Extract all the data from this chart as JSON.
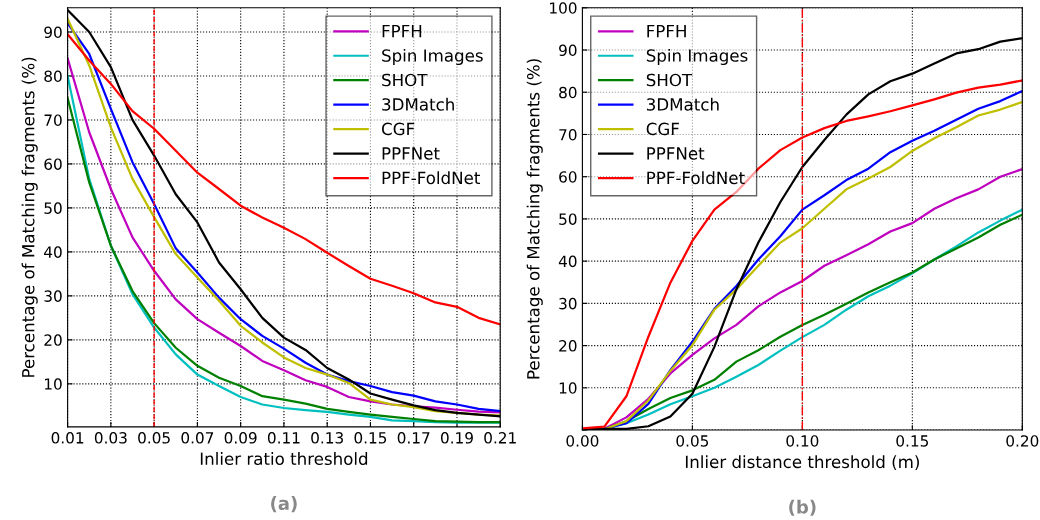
{
  "chart_data": [
    {
      "type": "line",
      "xlabel": "Inlier ratio threshold",
      "ylabel": "Percentage of Matching fragments (%)",
      "annotations": [
        "(a)"
      ],
      "x": [
        0.01,
        0.02,
        0.03,
        0.04,
        0.05,
        0.06,
        0.07,
        0.08,
        0.09,
        0.1,
        0.11,
        0.12,
        0.13,
        0.14,
        0.15,
        0.16,
        0.17,
        0.18,
        0.19,
        0.2,
        0.21
      ],
      "xlim": [
        0.01,
        0.21
      ],
      "xticks": [
        0.01,
        0.03,
        0.05,
        0.07,
        0.09,
        0.11,
        0.13,
        0.15,
        0.17,
        0.19,
        0.21
      ],
      "ylim": [
        0.2,
        95.5
      ],
      "yticks": [
        10,
        20,
        30,
        40,
        50,
        60,
        70,
        80,
        90
      ],
      "grid": true,
      "legend": "top right",
      "line_style": "solid",
      "marker": "none",
      "ref_lines": [
        {
          "axis": "x",
          "value": 0.05,
          "color": "#ff0000",
          "line_style": "dashed"
        }
      ],
      "series": [
        {
          "name": "FPFH",
          "color": "#bf00bf",
          "values": [
            84,
            67.2,
            54.3,
            43.3,
            35.7,
            29.2,
            24.7,
            21.6,
            18.6,
            15.2,
            13.1,
            10.8,
            9.3,
            7,
            6,
            5.3,
            4.9,
            4.6,
            4.1,
            3.7,
            3.5
          ]
        },
        {
          "name": "Spin Images",
          "color": "#00bfbf",
          "values": [
            80,
            56.6,
            41.4,
            30.4,
            22.8,
            16.7,
            12.1,
            9.5,
            7,
            5.3,
            4.5,
            4,
            3.6,
            3,
            2.5,
            1.7,
            1.5,
            1.3,
            1.2,
            1.2,
            1.2
          ]
        },
        {
          "name": "SHOT",
          "color": "#008000",
          "values": [
            75,
            55.8,
            41.4,
            31.1,
            23.8,
            18.2,
            14.1,
            11.4,
            9.5,
            7.2,
            6.4,
            5.5,
            4.3,
            3.6,
            3,
            2.5,
            2,
            1.5,
            1.4,
            1.3,
            1.3
          ]
        },
        {
          "name": "3DMatch",
          "color": "#0000ff",
          "values": [
            92,
            85,
            72.5,
            60.4,
            50.9,
            40.8,
            35.3,
            29.6,
            24.7,
            20.9,
            18,
            14.8,
            12.1,
            10.6,
            9.5,
            8.1,
            7.3,
            6,
            5.3,
            4.3,
            3.8
          ]
        },
        {
          "name": "CGF",
          "color": "#bfbf00",
          "values": [
            93,
            82.4,
            68.3,
            56.6,
            47.9,
            39.5,
            34.2,
            28.9,
            23.2,
            19.4,
            16,
            13.6,
            12.1,
            10.2,
            6.4,
            5.3,
            4.7,
            3.8,
            3.4,
            3,
            2.8
          ]
        },
        {
          "name": "PPFNet",
          "color": "#000000",
          "values": [
            95,
            90,
            82,
            70,
            61.9,
            53.1,
            46.7,
            37.6,
            31.5,
            25,
            20.5,
            17.7,
            13.6,
            11,
            7.8,
            6.4,
            5.1,
            4,
            3.4,
            3,
            2.6
          ]
        },
        {
          "name": "PPF-FoldNet",
          "color": "#ff0000",
          "values": [
            89.5,
            83.5,
            78.2,
            72,
            68,
            63,
            58,
            54.3,
            50.5,
            47.8,
            45.5,
            42.9,
            39.8,
            36.8,
            33.9,
            32.3,
            30.6,
            28.5,
            27.5,
            25,
            23.5
          ]
        }
      ]
    },
    {
      "type": "line",
      "xlabel": "Inlier distance threshold (m)",
      "ylabel": "Percentage of Matching fragments (%)",
      "annotations": [
        "(b)"
      ],
      "x": [
        0,
        0.01,
        0.02,
        0.03,
        0.04,
        0.05,
        0.06,
        0.07,
        0.08,
        0.09,
        0.1,
        0.11,
        0.12,
        0.13,
        0.14,
        0.15,
        0.16,
        0.17,
        0.18,
        0.19,
        0.2
      ],
      "xlim": [
        0,
        0.2
      ],
      "xticks": [
        {
          "value": 0,
          "label": "0.00"
        },
        0.05,
        {
          "value": 0.1,
          "label": "0.10"
        },
        0.15,
        {
          "value": 0.2,
          "label": "0.20"
        }
      ],
      "ylim": [
        0,
        100
      ],
      "yticks": [
        {
          "value": 0,
          "label": null
        },
        10,
        20,
        30,
        40,
        50,
        60,
        70,
        80,
        90,
        100
      ],
      "grid": true,
      "legend": "top left",
      "line_style": "solid",
      "marker": "none",
      "ref_lines": [
        {
          "axis": "x",
          "value": 0.1,
          "color": "#ff0000",
          "line_style": "dashdot"
        }
      ],
      "series": [
        {
          "name": "FPFH",
          "color": "#bf00bf",
          "values": [
            0,
            0.3,
            3,
            7.4,
            13.4,
            17.8,
            21.7,
            24.9,
            29.3,
            32.6,
            35.3,
            38.9,
            41.4,
            44,
            47,
            49,
            52.4,
            54.9,
            57,
            60,
            61.8
          ]
        },
        {
          "name": "Spin Images",
          "color": "#00bfbf",
          "values": [
            0,
            0.2,
            1.6,
            3.7,
            6.1,
            8,
            10,
            12.6,
            15.4,
            18.8,
            22,
            24.9,
            28.5,
            31.7,
            34.2,
            37.1,
            40.4,
            43.5,
            46.8,
            49.6,
            52.2
          ]
        },
        {
          "name": "SHOT",
          "color": "#008000",
          "values": [
            0,
            0.2,
            2.1,
            5,
            7.6,
            9.4,
            11.9,
            16.2,
            18.9,
            22.1,
            24.9,
            27.3,
            29.9,
            32.6,
            35,
            37.3,
            40.4,
            43,
            45.6,
            48.6,
            51
          ]
        },
        {
          "name": "3DMatch",
          "color": "#0000ff",
          "values": [
            0,
            0.3,
            1.6,
            6.2,
            14.2,
            20.9,
            28.7,
            34.1,
            40.4,
            45.9,
            52.2,
            55.6,
            59.2,
            61.9,
            65.8,
            68.5,
            70.9,
            73.5,
            76.1,
            77.9,
            80.3
          ]
        },
        {
          "name": "CGF",
          "color": "#bfbf00",
          "values": [
            0,
            0.2,
            2.1,
            7,
            14,
            20.1,
            28.5,
            33.3,
            38.9,
            44.4,
            47.8,
            52.4,
            57,
            59.6,
            62.3,
            66.1,
            69.1,
            71.7,
            74.5,
            75.9,
            77.7
          ]
        },
        {
          "name": "PPFNet",
          "color": "#000000",
          "values": [
            0.2,
            0.3,
            0.3,
            0.9,
            3.2,
            8.6,
            19.7,
            33.3,
            44.4,
            54,
            62.3,
            68.7,
            74.7,
            79.5,
            82.6,
            84.4,
            86.8,
            89.2,
            90.2,
            92,
            92.8
          ]
        },
        {
          "name": "PPF-FoldNet",
          "color": "#ff0000",
          "values": [
            0.4,
            0.8,
            8,
            22.1,
            34.9,
            44.8,
            52.2,
            56.4,
            61.9,
            66.3,
            69.3,
            71.5,
            73.2,
            74.3,
            75.5,
            76.9,
            78.3,
            79.9,
            81.1,
            81.8,
            82.8
          ]
        }
      ]
    }
  ]
}
